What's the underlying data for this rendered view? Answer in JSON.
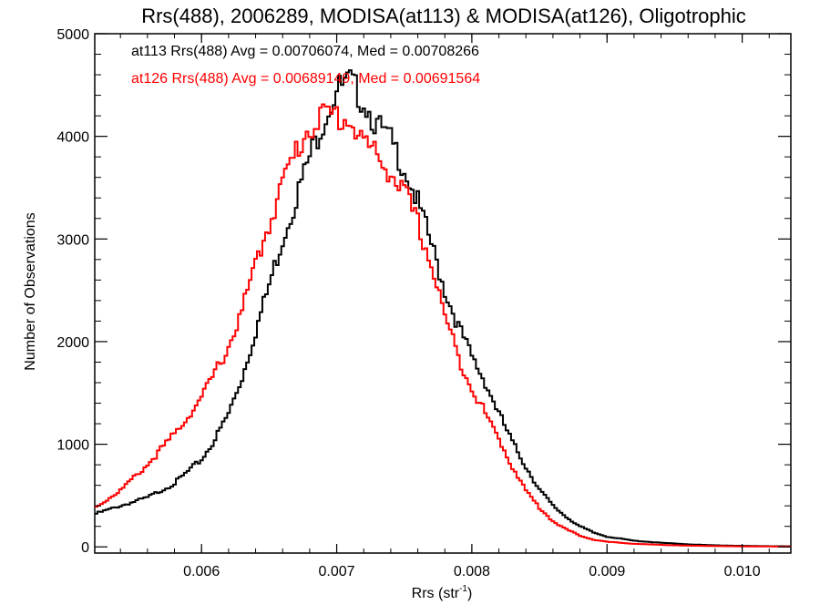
{
  "chart_data": {
    "type": "line",
    "step": true,
    "title": "Rrs(488), 2006289, MODISA(at113) & MODISA(at126), Oligotrophic",
    "xlabel": "Rrs (str",
    "xlabel_sup": "-1",
    "xlabel_suffix": ")",
    "ylabel": "Number of Observations",
    "xlim": [
      0.00521,
      0.01036
    ],
    "ylim": [
      -60,
      5000
    ],
    "xticks": [
      0.006,
      0.007,
      0.008,
      0.009,
      0.01
    ],
    "xtick_labels": [
      "0.006",
      "0.007",
      "0.008",
      "0.009",
      "0.010"
    ],
    "yticks": [
      0,
      1000,
      2000,
      3000,
      4000,
      5000
    ],
    "ytick_labels": [
      "0",
      "1000",
      "2000",
      "3000",
      "4000",
      "5000"
    ],
    "grid": false,
    "legend_position": "top-left",
    "annotations": [
      {
        "text": "at113 Rrs(488) Avg = 0.00706074, Med = 0.00708266",
        "color": "#000000"
      },
      {
        "text": "at126 Rrs(488) Avg = 0.00689149, Med = 0.00691564",
        "color": "#ff0000"
      }
    ],
    "series": [
      {
        "color": "#000000",
        "x": [
          0.00521,
          0.0054,
          0.0056,
          0.0058,
          0.006,
          0.0061,
          0.0062,
          0.0063,
          0.0064,
          0.0065,
          0.0066,
          0.0067,
          0.0068,
          0.0069,
          0.007,
          0.0071,
          0.0072,
          0.0073,
          0.0074,
          0.0075,
          0.0076,
          0.0077,
          0.0078,
          0.0079,
          0.008,
          0.0081,
          0.0082,
          0.0083,
          0.0084,
          0.0085,
          0.0086,
          0.0087,
          0.0088,
          0.0089,
          0.009,
          0.0092,
          0.0094,
          0.0096,
          0.0098,
          0.01,
          0.01036
        ],
        "y": [
          320,
          400,
          480,
          620,
          850,
          1050,
          1300,
          1650,
          2100,
          2550,
          3000,
          3400,
          3800,
          4150,
          4450,
          4520,
          4350,
          4100,
          3950,
          3700,
          3350,
          2950,
          2500,
          2150,
          1850,
          1600,
          1300,
          1020,
          780,
          560,
          400,
          290,
          200,
          140,
          100,
          60,
          40,
          25,
          15,
          10,
          5
        ]
      },
      {
        "color": "#ff0000",
        "x": [
          0.00521,
          0.0054,
          0.0056,
          0.0058,
          0.006,
          0.0061,
          0.0062,
          0.0063,
          0.0064,
          0.0065,
          0.0066,
          0.0067,
          0.0068,
          0.0069,
          0.007,
          0.0071,
          0.0072,
          0.0073,
          0.0074,
          0.0075,
          0.0076,
          0.0077,
          0.0078,
          0.0079,
          0.008,
          0.0081,
          0.0082,
          0.0083,
          0.0084,
          0.0085,
          0.0086,
          0.0087,
          0.0088,
          0.0089,
          0.009,
          0.0092,
          0.0094,
          0.0096,
          0.0098,
          0.01,
          0.01036
        ],
        "y": [
          380,
          550,
          800,
          1100,
          1450,
          1700,
          1950,
          2300,
          2750,
          3150,
          3550,
          3850,
          4100,
          4200,
          4200,
          4150,
          3950,
          3800,
          3650,
          3450,
          3150,
          2750,
          2250,
          1850,
          1550,
          1300,
          1050,
          780,
          550,
          380,
          250,
          170,
          110,
          70,
          50,
          30,
          20,
          12,
          8,
          5,
          3
        ]
      }
    ]
  }
}
